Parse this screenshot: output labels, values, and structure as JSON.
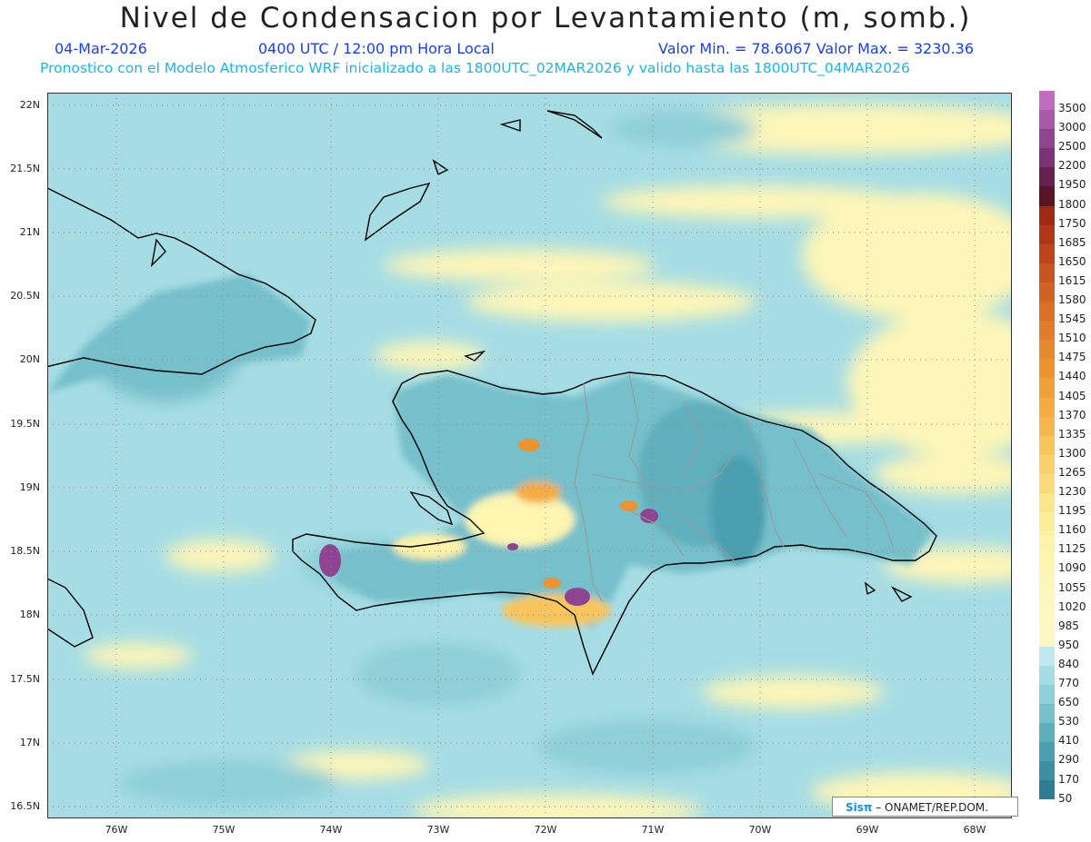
{
  "title": "Nivel de Condensacion por Levantamiento (m, somb.)",
  "header": {
    "date": "04-Mar-2026",
    "time": "0400 UTC / 12:00 pm Hora Local",
    "stats": "Valor Min. = 78.6067   Valor Max. = 3230.36",
    "model_line": "Pronostico con el Modelo Atmosferico WRF inicializado a las 1800UTC_02MAR2026 y valido hasta las  1800UTC_04MAR2026"
  },
  "axes": {
    "y_labels": [
      "22N",
      "21.5N",
      "21N",
      "20.5N",
      "20N",
      "19.5N",
      "19N",
      "18.5N",
      "18N",
      "17.5N",
      "17N",
      "16.5N"
    ],
    "x_labels": [
      "76W",
      "75W",
      "74W",
      "73W",
      "72W",
      "71W",
      "70W",
      "69W",
      "68W"
    ]
  },
  "colorbar": {
    "labels": [
      "3500",
      "3000",
      "2500",
      "2200",
      "1950",
      "1800",
      "1750",
      "1685",
      "1650",
      "1615",
      "1580",
      "1545",
      "1510",
      "1475",
      "1440",
      "1405",
      "1370",
      "1335",
      "1300",
      "1265",
      "1230",
      "1195",
      "1160",
      "1125",
      "1090",
      "1055",
      "1020",
      "985",
      "950",
      "840",
      "770",
      "650",
      "530",
      "410",
      "290",
      "170",
      "50"
    ],
    "colors": [
      "#c06cc0",
      "#a85aa8",
      "#8e4490",
      "#7a3278",
      "#65224e",
      "#5a1424",
      "#9e2a14",
      "#b03618",
      "#bf441e",
      "#c85422",
      "#d06224",
      "#d87028",
      "#e07c2c",
      "#e6882e",
      "#ec9432",
      "#f0a038",
      "#f4ab42",
      "#f6b84e",
      "#f8c55c",
      "#fad06a",
      "#fbda78",
      "#fce488",
      "#fdec98",
      "#fdf2a6",
      "#fdf5b0",
      "#fdf6b8",
      "#fdf7bf",
      "#fdf7c2",
      "#fdf7c4",
      "#bfe9ef",
      "#a6dde4",
      "#8ecfd8",
      "#76c0cb",
      "#5eafbd",
      "#4a9fb0",
      "#3a8fa2",
      "#2d7e93"
    ]
  },
  "credit": {
    "logo": "Sisπ",
    "text": "– ONAMET/REP.DOM."
  },
  "colors": {
    "sea_base": "#a6dde4",
    "land_base": "#76c0cb",
    "coast": "#000000",
    "borders": "#9a9a9a",
    "grid": "#8a8a8a"
  }
}
